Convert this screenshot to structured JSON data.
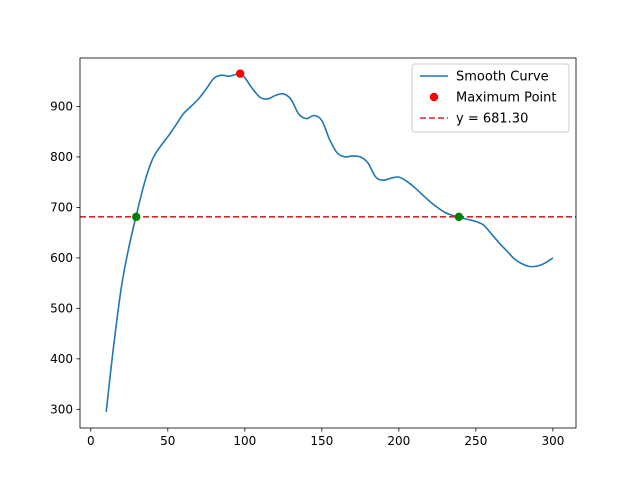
{
  "chart_data": {
    "type": "line",
    "title": "",
    "xlabel": "",
    "ylabel": "",
    "xlim": [
      -7,
      315
    ],
    "ylim": [
      263,
      996
    ],
    "x_ticks": [
      0,
      50,
      100,
      150,
      200,
      250,
      300
    ],
    "y_ticks": [
      300,
      400,
      500,
      600,
      700,
      800,
      900
    ],
    "x_tick_labels": [
      "0",
      "50",
      "100",
      "150",
      "200",
      "250",
      "300"
    ],
    "y_tick_labels": [
      "300",
      "400",
      "500",
      "600",
      "700",
      "800",
      "900"
    ],
    "grid": false,
    "legend_position": "top-right",
    "series": [
      {
        "name": "Smooth Curve",
        "kind": "line",
        "color": "#1f77b4",
        "x": [
          10,
          15,
          20,
          25,
          30,
          35,
          40,
          45,
          50,
          55,
          60,
          65,
          70,
          75,
          80,
          85,
          90,
          97,
          100,
          105,
          110,
          115,
          120,
          125,
          130,
          135,
          140,
          145,
          150,
          155,
          160,
          165,
          170,
          175,
          180,
          185,
          190,
          195,
          200,
          205,
          210,
          215,
          220,
          225,
          230,
          235,
          239,
          245,
          250,
          255,
          260,
          265,
          270,
          275,
          280,
          285,
          290,
          295,
          300
        ],
        "y": [
          295,
          430,
          545,
          625,
          690,
          750,
          795,
          820,
          840,
          862,
          885,
          900,
          915,
          935,
          956,
          962,
          960,
          965,
          957,
          935,
          918,
          915,
          922,
          925,
          914,
          885,
          876,
          882,
          872,
          835,
          808,
          800,
          802,
          800,
          788,
          760,
          754,
          758,
          760,
          752,
          740,
          726,
          712,
          700,
          690,
          684,
          681,
          676,
          672,
          665,
          648,
          630,
          614,
          598,
          588,
          583,
          584,
          590,
          600
        ]
      },
      {
        "name": "Maximum Point",
        "kind": "points",
        "color": "#ff0000",
        "x": [
          97
        ],
        "y": [
          965
        ]
      },
      {
        "name": "y = 681.30",
        "kind": "hline",
        "color": "#d62728",
        "y": 681.3
      },
      {
        "name": "",
        "kind": "points",
        "color": "#008000",
        "x": [
          29.5,
          239
        ],
        "y": [
          681.3,
          681.3
        ]
      }
    ],
    "legend": [
      "Smooth Curve",
      "Maximum Point",
      "y = 681.30"
    ]
  }
}
